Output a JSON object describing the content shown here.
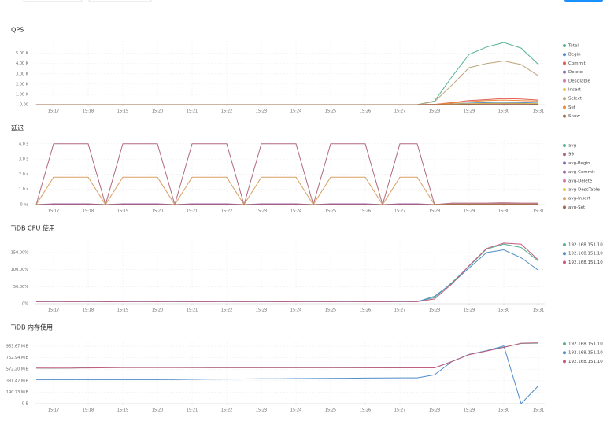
{
  "chart_data": [
    {
      "type": "line",
      "title": "QPS",
      "grid": true,
      "categories": [
        null,
        "15:17",
        null,
        "15:18",
        null,
        "15:19",
        null,
        "15:20",
        null,
        "15:21",
        null,
        "15:22",
        null,
        "15:23",
        null,
        "15:24",
        null,
        "15:25",
        null,
        "15:26",
        null,
        "15:27",
        null,
        "15:28",
        null,
        "15:29",
        null,
        "15:30",
        null,
        "15:31"
      ],
      "ylim": [
        0,
        6200
      ],
      "yticks": [
        {
          "value": 0,
          "label": "0.00"
        },
        {
          "value": 1000,
          "label": "1.00 K"
        },
        {
          "value": 2000,
          "label": "2.00 K"
        },
        {
          "value": 3000,
          "label": "3.00 K"
        },
        {
          "value": 4000,
          "label": "4.00 K"
        },
        {
          "value": 5000,
          "label": "5.00 K"
        }
      ],
      "series": [
        {
          "name": "Total",
          "color": "#55b38e",
          "values": [
            0,
            0,
            0,
            0,
            0,
            0,
            0,
            0,
            0,
            0,
            0,
            0,
            0,
            0,
            0,
            0,
            0,
            0,
            0,
            0,
            0,
            0,
            0,
            350,
            2700,
            4900,
            5600,
            6050,
            5500,
            3900
          ]
        },
        {
          "name": "Begin",
          "color": "#4f8cc9",
          "values": [
            0,
            0,
            0,
            0,
            0,
            0,
            0,
            0,
            0,
            0,
            0,
            0,
            0,
            0,
            0,
            0,
            0,
            0,
            0,
            0,
            0,
            0,
            0,
            20,
            80,
            150,
            200,
            220,
            200,
            150
          ]
        },
        {
          "name": "Commit",
          "color": "#e05d4e",
          "values": [
            0,
            0,
            0,
            0,
            0,
            0,
            0,
            0,
            0,
            0,
            0,
            0,
            0,
            0,
            0,
            0,
            0,
            0,
            0,
            0,
            0,
            0,
            0,
            30,
            200,
            400,
            500,
            600,
            550,
            450
          ]
        },
        {
          "name": "Delete",
          "color": "#8b6bbf",
          "values": [
            0,
            0,
            0,
            0,
            0,
            0,
            0,
            0,
            0,
            0,
            0,
            0,
            0,
            0,
            0,
            0,
            0,
            0,
            0,
            0,
            0,
            0,
            0,
            10,
            40,
            80,
            100,
            110,
            100,
            80
          ]
        },
        {
          "name": "DescTable",
          "color": "#d77bb0",
          "values": [
            0,
            0,
            0,
            0,
            0,
            0,
            0,
            0,
            0,
            0,
            0,
            0,
            0,
            0,
            0,
            0,
            0,
            0,
            0,
            0,
            0,
            0,
            0,
            5,
            10,
            20,
            20,
            20,
            20,
            20
          ]
        },
        {
          "name": "Insert",
          "color": "#e6c44d",
          "values": [
            0,
            0,
            0,
            0,
            0,
            0,
            0,
            0,
            0,
            0,
            0,
            0,
            0,
            0,
            0,
            0,
            0,
            0,
            0,
            0,
            0,
            0,
            0,
            10,
            50,
            100,
            120,
            130,
            120,
            100
          ]
        },
        {
          "name": "Select",
          "color": "#bba57a",
          "values": [
            0,
            0,
            0,
            0,
            0,
            0,
            0,
            0,
            0,
            0,
            0,
            0,
            0,
            0,
            0,
            0,
            0,
            0,
            0,
            0,
            0,
            0,
            0,
            300,
            1900,
            3600,
            4000,
            4250,
            3900,
            2800
          ]
        },
        {
          "name": "Set",
          "color": "#ee8a3c",
          "values": [
            0,
            0,
            0,
            0,
            0,
            0,
            0,
            0,
            0,
            0,
            0,
            0,
            0,
            0,
            0,
            0,
            0,
            0,
            0,
            0,
            0,
            0,
            0,
            20,
            150,
            300,
            400,
            450,
            400,
            350
          ]
        },
        {
          "name": "Show",
          "color": "#9c6a4a",
          "values": [
            0,
            0,
            0,
            0,
            0,
            0,
            0,
            0,
            0,
            0,
            0,
            0,
            0,
            0,
            0,
            0,
            0,
            0,
            0,
            0,
            0,
            0,
            0,
            5,
            20,
            40,
            50,
            50,
            50,
            40
          ]
        }
      ]
    },
    {
      "type": "line",
      "title": "延迟",
      "grid": true,
      "categories": [
        null,
        "15:17",
        null,
        "15:18",
        null,
        "15:19",
        null,
        "15:20",
        null,
        "15:21",
        null,
        "15:22",
        null,
        "15:23",
        null,
        "15:24",
        null,
        "15:25",
        null,
        "15:26",
        null,
        "15:27",
        null,
        "15:28",
        null,
        "15:29",
        null,
        "15:30",
        null,
        "15:31"
      ],
      "ylim": [
        0,
        4.25
      ],
      "yticks": [
        {
          "value": 0,
          "label": "0 ns"
        },
        {
          "value": 1,
          "label": "1.0 s"
        },
        {
          "value": 2,
          "label": "2.0 s"
        },
        {
          "value": 3,
          "label": "3.0 s"
        },
        {
          "value": 4,
          "label": "4.0 s"
        }
      ],
      "series": [
        {
          "name": "avg",
          "color": "#55b38e",
          "values": [
            0,
            0.02,
            0.02,
            0.02,
            0,
            0.02,
            0.02,
            0.02,
            0,
            0.02,
            0.02,
            0.02,
            0,
            0.02,
            0.02,
            0.02,
            0,
            0.02,
            0.02,
            0.02,
            0,
            0.02,
            0.02,
            0,
            0.05,
            0.05,
            0.05,
            0.05,
            0.05,
            0.05
          ]
        },
        {
          "name": "99",
          "color": "#b0687e",
          "values": [
            0,
            4,
            4,
            4,
            0,
            4,
            4,
            4,
            0,
            4,
            4,
            4,
            0,
            4,
            4,
            4,
            0,
            4,
            4,
            4,
            0,
            4,
            4,
            0,
            0.1,
            0.1,
            0.1,
            0.12,
            0.1,
            0.1
          ]
        },
        {
          "name": "avg-Begin",
          "color": "#8b6bbf",
          "values": [
            0,
            0,
            0,
            0,
            0,
            0,
            0,
            0,
            0,
            0,
            0,
            0,
            0,
            0,
            0,
            0,
            0,
            0,
            0,
            0,
            0,
            0,
            0,
            0,
            0.02,
            0.02,
            0.02,
            0.02,
            0.02,
            0.02
          ]
        },
        {
          "name": "avg-Commit",
          "color": "#a55fb5",
          "values": [
            0,
            0.05,
            0.05,
            0.05,
            0,
            0.05,
            0.05,
            0.05,
            0,
            0.05,
            0.05,
            0.05,
            0,
            0.05,
            0.05,
            0.05,
            0,
            0.05,
            0.05,
            0.05,
            0,
            0.05,
            0.05,
            0,
            0.08,
            0.08,
            0.08,
            0.08,
            0.08,
            0.08
          ]
        },
        {
          "name": "avg-Delete",
          "color": "#d77bb0",
          "values": [
            0,
            0,
            0,
            0,
            0,
            0,
            0,
            0,
            0,
            0,
            0,
            0,
            0,
            0,
            0,
            0,
            0,
            0,
            0,
            0,
            0,
            0,
            0,
            0,
            0.03,
            0.03,
            0.03,
            0.03,
            0.03,
            0.03
          ]
        },
        {
          "name": "avg-DescTable",
          "color": "#e6c44d",
          "values": [
            0,
            0,
            0,
            0,
            0,
            0,
            0,
            0,
            0,
            0,
            0,
            0,
            0,
            0,
            0,
            0,
            0,
            0,
            0,
            0,
            0,
            0,
            0,
            0,
            0.01,
            0.01,
            0.01,
            0.01,
            0.01,
            0.01
          ]
        },
        {
          "name": "avg-Insert",
          "color": "#d9a064",
          "values": [
            0,
            1.8,
            1.8,
            1.8,
            0,
            1.8,
            1.8,
            1.8,
            0,
            1.8,
            1.8,
            1.8,
            0,
            1.8,
            1.8,
            1.8,
            0,
            1.8,
            1.8,
            1.8,
            0,
            1.8,
            1.8,
            0,
            0.05,
            0.05,
            0.05,
            0.05,
            0.05,
            0.05
          ]
        },
        {
          "name": "avg-Set",
          "color": "#9c6a4a",
          "values": [
            0,
            0,
            0,
            0,
            0,
            0,
            0,
            0,
            0,
            0,
            0,
            0,
            0,
            0,
            0,
            0,
            0,
            0,
            0,
            0,
            0,
            0,
            0,
            0,
            0.02,
            0.02,
            0.02,
            0.02,
            0.02,
            0.02
          ]
        }
      ]
    },
    {
      "type": "line",
      "title": "TiDB CPU 使用",
      "grid": true,
      "categories": [
        null,
        "15:17",
        null,
        "15:18",
        null,
        "15:19",
        null,
        "15:20",
        null,
        "15:21",
        null,
        "15:22",
        null,
        "15:23",
        null,
        "15:24",
        null,
        "15:25",
        null,
        "15:26",
        null,
        "15:27",
        null,
        "15:28",
        null,
        "15:29",
        null,
        "15:30",
        null,
        "15:31"
      ],
      "ylim": [
        0,
        180
      ],
      "yticks": [
        {
          "value": 0,
          "label": "0%"
        },
        {
          "value": 50,
          "label": "50.00%"
        },
        {
          "value": 100,
          "label": "100.00%"
        },
        {
          "value": 150,
          "label": "150.00%"
        }
      ],
      "series": [
        {
          "name": "192.168.151.101",
          "color": "#55b38e",
          "values": [
            7,
            7,
            7,
            7,
            6,
            7,
            7,
            7,
            7,
            6,
            7,
            7,
            7,
            7,
            6,
            7,
            7,
            7,
            7,
            6,
            7,
            7,
            7,
            18,
            62,
            110,
            160,
            175,
            165,
            125
          ]
        },
        {
          "name": "192.168.151.103",
          "color": "#4f8cc9",
          "values": [
            6,
            6,
            6,
            6,
            6,
            6,
            6,
            6,
            6,
            6,
            6,
            6,
            6,
            6,
            6,
            6,
            6,
            6,
            6,
            6,
            6,
            6,
            6,
            22,
            60,
            105,
            150,
            158,
            135,
            98
          ]
        },
        {
          "name": "192.168.151.104",
          "color": "#c45c82",
          "values": [
            6,
            7,
            6,
            7,
            6,
            6,
            7,
            6,
            7,
            6,
            6,
            7,
            6,
            7,
            6,
            6,
            7,
            6,
            7,
            6,
            6,
            7,
            6,
            14,
            58,
            112,
            162,
            178,
            175,
            128
          ]
        }
      ]
    },
    {
      "type": "line",
      "title": "TiDB 内存使用",
      "grid": true,
      "categories": [
        null,
        "15:17",
        null,
        "15:18",
        null,
        "15:19",
        null,
        "15:20",
        null,
        "15:21",
        null,
        "15:22",
        null,
        "15:23",
        null,
        "15:24",
        null,
        "15:25",
        null,
        "15:26",
        null,
        "15:27",
        null,
        "15:28",
        null,
        "15:29",
        null,
        "15:30",
        null,
        "15:31"
      ],
      "ylim": [
        0,
        1020
      ],
      "yticks": [
        {
          "value": 0,
          "label": "0 B"
        },
        {
          "value": 190.73,
          "label": "190.73 MiB"
        },
        {
          "value": 381.47,
          "label": "381.47 MiB"
        },
        {
          "value": 572.2,
          "label": "572.20 MiB"
        },
        {
          "value": 762.94,
          "label": "762.94 MiB"
        },
        {
          "value": 953.67,
          "label": "953.67 MiB"
        }
      ],
      "series": [
        {
          "name": "192.168.151.101",
          "color": "#55b38e",
          "values": [
            590,
            588,
            590,
            600,
            598,
            600,
            600,
            600,
            600,
            598,
            598,
            598,
            598,
            598,
            598,
            598,
            597,
            597,
            596,
            596,
            595,
            595,
            595,
            595,
            700,
            820,
            880,
            940,
            1000,
            1005
          ]
        },
        {
          "name": "192.168.151.103",
          "color": "#4f8cc9",
          "values": [
            400,
            400,
            400,
            400,
            400,
            400,
            400,
            400,
            402,
            405,
            408,
            410,
            412,
            414,
            416,
            418,
            420,
            422,
            424,
            426,
            428,
            430,
            430,
            480,
            700,
            820,
            880,
            960,
            0,
            300
          ]
        },
        {
          "name": "192.168.151.104",
          "color": "#c45c82",
          "values": [
            592,
            592,
            592,
            594,
            596,
            600,
            600,
            600,
            600,
            600,
            599,
            599,
            598,
            598,
            598,
            598,
            597,
            597,
            597,
            596,
            596,
            596,
            595,
            595,
            700,
            815,
            875,
            935,
            1005,
            1012
          ]
        }
      ]
    }
  ]
}
